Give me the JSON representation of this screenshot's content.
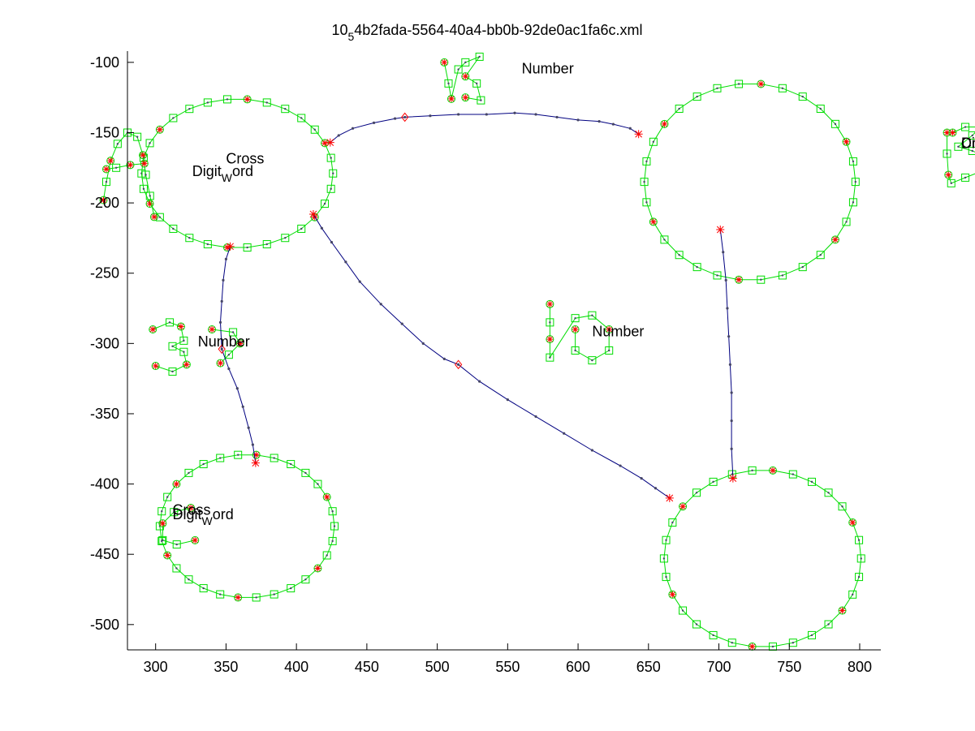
{
  "chart_data": {
    "type": "scatter",
    "title": {
      "prefix": "10",
      "sub": "5",
      "suffix": "4b2fada-5564-40a4-bb0b-92de0ac1fa6c.xml"
    },
    "xlabel": "",
    "ylabel": "",
    "xlim": [
      280,
      815
    ],
    "ylim": [
      -518,
      -92
    ],
    "xticks": [
      300,
      350,
      400,
      450,
      500,
      550,
      600,
      650,
      700,
      750,
      800
    ],
    "yticks": [
      -100,
      -150,
      -200,
      -250,
      -300,
      -350,
      -400,
      -450,
      -500
    ],
    "grid": false,
    "colors": {
      "stroke": "#00dd00",
      "edge": "#000080",
      "point": "#444466",
      "corner": "#ff0000"
    },
    "ellipses": [
      {
        "name": "node-a",
        "cx": 358,
        "cy": -179,
        "rx": 68,
        "ry": 53
      },
      {
        "name": "node-b",
        "cx": 722,
        "cy": -185,
        "rx": 75,
        "ry": 70
      },
      {
        "name": "node-c",
        "cx": 365,
        "cy": -430,
        "rx": 62,
        "ry": 51
      },
      {
        "name": "node-d",
        "cx": 731,
        "cy": -453,
        "rx": 70,
        "ry": 63
      }
    ],
    "edges": [
      {
        "name": "edge-a-b",
        "points": [
          [
            424,
            -157
          ],
          [
            430,
            -152
          ],
          [
            440,
            -147
          ],
          [
            455,
            -143
          ],
          [
            470,
            -140
          ],
          [
            477,
            -139
          ],
          [
            495,
            -138
          ],
          [
            515,
            -137
          ],
          [
            535,
            -137
          ],
          [
            555,
            -136
          ],
          [
            570,
            -137
          ],
          [
            585,
            -139
          ],
          [
            600,
            -141
          ],
          [
            615,
            -142
          ],
          [
            625,
            -144
          ],
          [
            637,
            -147
          ],
          [
            643,
            -151
          ]
        ],
        "diamonds": [
          [
            477,
            -139
          ]
        ]
      },
      {
        "name": "edge-a-d",
        "points": [
          [
            412,
            -208
          ],
          [
            418,
            -218
          ],
          [
            425,
            -228
          ],
          [
            435,
            -242
          ],
          [
            445,
            -256
          ],
          [
            460,
            -272
          ],
          [
            475,
            -286
          ],
          [
            490,
            -300
          ],
          [
            505,
            -311
          ],
          [
            515,
            -315
          ],
          [
            530,
            -327
          ],
          [
            550,
            -340
          ],
          [
            570,
            -352
          ],
          [
            590,
            -364
          ],
          [
            610,
            -376
          ],
          [
            630,
            -387
          ],
          [
            645,
            -396
          ],
          [
            655,
            -403
          ],
          [
            665,
            -410
          ]
        ],
        "diamonds": [
          [
            515,
            -315
          ]
        ]
      },
      {
        "name": "edge-a-c",
        "points": [
          [
            353,
            -231
          ],
          [
            350,
            -240
          ],
          [
            348,
            -255
          ],
          [
            347,
            -270
          ],
          [
            346,
            -285
          ],
          [
            347,
            -304
          ],
          [
            352,
            -318
          ],
          [
            358,
            -332
          ],
          [
            362,
            -345
          ],
          [
            366,
            -360
          ],
          [
            369,
            -372
          ],
          [
            371,
            -385
          ]
        ],
        "diamonds": [
          [
            347,
            -304
          ]
        ]
      },
      {
        "name": "edge-b-d",
        "points": [
          [
            701,
            -219
          ],
          [
            703,
            -235
          ],
          [
            705,
            -255
          ],
          [
            706,
            -275
          ],
          [
            707,
            -295
          ],
          [
            708,
            -315
          ],
          [
            709,
            -335
          ],
          [
            709,
            -355
          ],
          [
            709,
            -375
          ],
          [
            710,
            -396
          ]
        ],
        "diamonds": []
      }
    ],
    "strokes": [
      {
        "name": "glyph-A",
        "points": [
          [
            263,
            -198
          ],
          [
            265,
            -185
          ],
          [
            268,
            -170
          ],
          [
            273,
            -158
          ],
          [
            280,
            -150
          ],
          [
            287,
            -153
          ],
          [
            291,
            -166
          ],
          [
            293,
            -180
          ],
          [
            296,
            -195
          ],
          [
            299,
            -210
          ]
        ]
      },
      {
        "name": "glyph-A-bar",
        "points": [
          [
            265,
            -176
          ],
          [
            272,
            -175
          ],
          [
            282,
            -173
          ],
          [
            292,
            -172
          ]
        ]
      },
      {
        "name": "glyph-B",
        "points": [
          [
            862,
            -150
          ],
          [
            862,
            -165
          ],
          [
            863,
            -180
          ],
          [
            865,
            -186
          ],
          [
            875,
            -182
          ],
          [
            885,
            -178
          ],
          [
            892,
            -168
          ],
          [
            880,
            -163
          ],
          [
            870,
            -160
          ],
          [
            880,
            -152
          ],
          [
            886,
            -146
          ],
          [
            875,
            -146
          ],
          [
            866,
            -150
          ]
        ]
      },
      {
        "name": "glyph-15",
        "points": [
          [
            505,
            -100
          ],
          [
            508,
            -115
          ],
          [
            510,
            -126
          ],
          [
            515,
            -105
          ],
          [
            520,
            -100
          ],
          [
            530,
            -96
          ],
          [
            520,
            -110
          ],
          [
            528,
            -115
          ],
          [
            531,
            -127
          ],
          [
            520,
            -125
          ]
        ]
      },
      {
        "name": "glyph-3",
        "points": [
          [
            298,
            -290
          ],
          [
            310,
            -285
          ],
          [
            318,
            -288
          ],
          [
            320,
            -298
          ],
          [
            312,
            -302
          ],
          [
            320,
            -306
          ],
          [
            322,
            -315
          ],
          [
            312,
            -320
          ],
          [
            300,
            -316
          ]
        ]
      },
      {
        "name": "glyph-3b",
        "points": [
          [
            340,
            -290
          ],
          [
            355,
            -292
          ],
          [
            360,
            -300
          ],
          [
            352,
            -308
          ],
          [
            346,
            -314
          ]
        ]
      },
      {
        "name": "glyph-10",
        "points": [
          [
            580,
            -272
          ],
          [
            580,
            -285
          ],
          [
            580,
            -297
          ],
          [
            580,
            -310
          ],
          [
            598,
            -282
          ],
          [
            610,
            -280
          ],
          [
            622,
            -290
          ],
          [
            622,
            -305
          ],
          [
            610,
            -312
          ],
          [
            598,
            -305
          ],
          [
            598,
            -290
          ]
        ]
      },
      {
        "name": "glyph-6",
        "points": [
          [
            958,
            -275
          ],
          [
            950,
            -285
          ],
          [
            942,
            -300
          ],
          [
            940,
            -315
          ],
          [
            950,
            -318
          ],
          [
            960,
            -312
          ],
          [
            962,
            -303
          ],
          [
            952,
            -298
          ],
          [
            944,
            -303
          ]
        ]
      },
      {
        "name": "glyph-6b",
        "points": [
          [
            990,
            -282
          ],
          [
            1003,
            -280
          ],
          [
            1008,
            -290
          ],
          [
            1003,
            -302
          ],
          [
            990,
            -305
          ],
          [
            985,
            -295
          ]
        ]
      },
      {
        "name": "glyph-C",
        "points": [
          [
            325,
            -417
          ],
          [
            313,
            -420
          ],
          [
            305,
            -428
          ],
          [
            305,
            -440
          ],
          [
            315,
            -443
          ],
          [
            328,
            -440
          ]
        ]
      },
      {
        "name": "glyph-D",
        "points": [
          [
            885,
            -445
          ],
          [
            890,
            -458
          ],
          [
            893,
            -472
          ],
          [
            898,
            -488
          ],
          [
            912,
            -476
          ],
          [
            922,
            -462
          ],
          [
            918,
            -450
          ],
          [
            905,
            -446
          ],
          [
            890,
            -444
          ]
        ]
      }
    ],
    "annotations": [
      {
        "name": "label-a-cross",
        "text": "Cross",
        "x": 350,
        "y": -172
      },
      {
        "name": "label-a-digit",
        "text": "Digit",
        "x": 326,
        "y": -181,
        "sub": "W",
        "word": "ord"
      },
      {
        "name": "label-b-digit",
        "text": "Digit",
        "x": 872,
        "y": -161,
        "sub": "W",
        "word": "ord"
      },
      {
        "name": "label-b-cross",
        "text": "Cross",
        "x": 872,
        "y": -161
      },
      {
        "name": "label-15-number",
        "text": "Number",
        "x": 560,
        "y": -108
      },
      {
        "name": "label-3-number",
        "text": "Number",
        "x": 330,
        "y": -302
      },
      {
        "name": "label-10-number",
        "text": "Number",
        "x": 610,
        "y": -295
      },
      {
        "name": "label-6-number",
        "text": "Number",
        "x": 976,
        "y": -295
      },
      {
        "name": "label-c-cross",
        "text": "Cross",
        "x": 312,
        "y": -422
      },
      {
        "name": "label-c-digit",
        "text": "Digit",
        "x": 312,
        "y": -425,
        "sub": "W",
        "word": "ord"
      },
      {
        "name": "label-d-cross",
        "text": "Cross",
        "x": 908,
        "y": -462
      },
      {
        "name": "label-d-digit",
        "text": "Digit",
        "x": 898,
        "y": -470,
        "sub": "W",
        "word": "ord"
      }
    ]
  }
}
